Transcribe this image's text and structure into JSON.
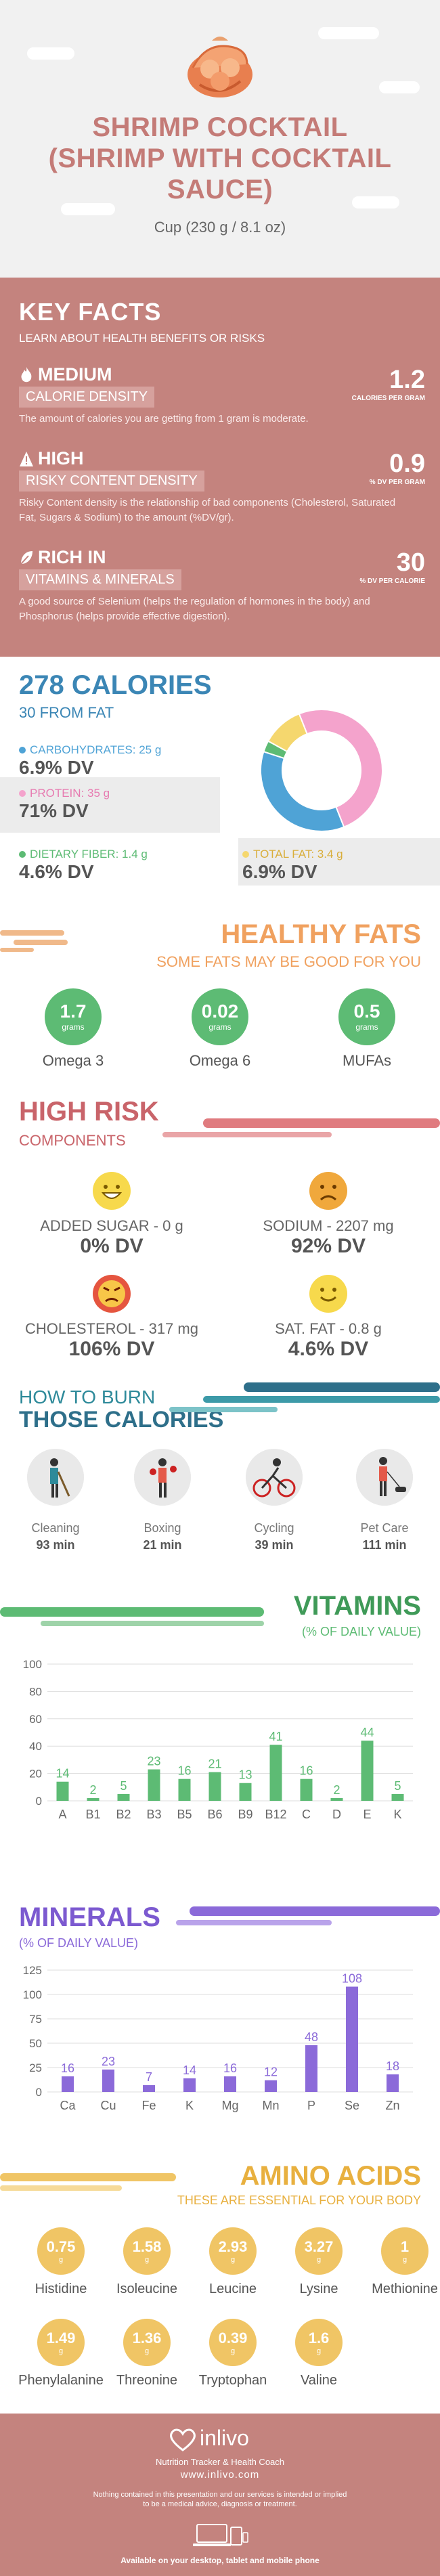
{
  "header": {
    "title_lines": [
      "SHRIMP COCKTAIL",
      "(SHRIMP WITH COCKTAIL",
      "SAUCE)"
    ],
    "serving": "Cup (230 g / 8.1 oz)"
  },
  "key_facts": {
    "title": "KEY FACTS",
    "subtitle": "LEARN ABOUT HEALTH BENEFITS OR RISKS",
    "items": [
      {
        "level": "MEDIUM",
        "label": "CALORIE DENSITY",
        "value": "1.2",
        "unit": "CALORIES PER GRAM",
        "desc": "The amount of calories you are getting from 1 gram is moderate."
      },
      {
        "level": "HIGH",
        "label": "RISKY CONTENT DENSITY",
        "value": "0.9",
        "unit": "% DV PER GRAM",
        "desc": "Risky Content density is the relationship of bad components (Cholesterol, Saturated Fat, Sugars & Sodium) to the amount (%DV/gr)."
      },
      {
        "level": "RICH  IN",
        "label": "VITAMINS & MINERALS",
        "value": "30",
        "unit": "% DV PER CALORIE",
        "desc": "A good source of Selenium (helps the regulation of hormones in the body) and Phosphorus (helps provide effective digestion)."
      }
    ]
  },
  "calories": {
    "title": "278 CALORIES",
    "subtitle": "30 FROM FAT",
    "carbs": {
      "label": "CARBOHYDRATES: 25 g",
      "dv": "6.9% DV"
    },
    "protein": {
      "label": "PROTEIN: 35 g",
      "dv": "71% DV"
    },
    "fiber": {
      "label": "DIETARY FIBER: 1.4 g",
      "dv": "4.6% DV"
    },
    "fat": {
      "label": "TOTAL FAT: 3.4 g",
      "dv": "6.9% DV"
    },
    "donut": {
      "carbs_pct": 36,
      "protein_pct": 50,
      "fat_pct": 11,
      "fiber_pct": 3
    },
    "colors": {
      "carbs": "#4fa3d6",
      "protein": "#f4a3cc",
      "fat": "#f5d76e",
      "fiber": "#5dbb74"
    }
  },
  "healthy_fats": {
    "title": "HEALTHY FATS",
    "subtitle": "SOME FATS MAY BE GOOD FOR YOU",
    "items": [
      {
        "value": "1.7",
        "unit": "grams",
        "name": "Omega 3"
      },
      {
        "value": "0.02",
        "unit": "grams",
        "name": "Omega 6"
      },
      {
        "value": "0.5",
        "unit": "grams",
        "name": "MUFAs"
      }
    ]
  },
  "high_risk": {
    "title": "HIGH RISK",
    "subtitle": "COMPONENTS",
    "items": [
      {
        "label": "ADDED SUGAR - 0 g",
        "dv": "0% DV",
        "face": "happy"
      },
      {
        "label": "SODIUM - 2207 mg",
        "dv": "92% DV",
        "face": "sad"
      },
      {
        "label": "CHOLESTEROL - 317 mg",
        "dv": "106% DV",
        "face": "angry"
      },
      {
        "label": "SAT. FAT - 0.8 g",
        "dv": "4.6% DV",
        "face": "smile"
      }
    ]
  },
  "burn": {
    "title_1": "HOW TO BURN",
    "title_2": "THOSE CALORIES",
    "items": [
      {
        "name": "Cleaning",
        "minutes": "93 min"
      },
      {
        "name": "Boxing",
        "minutes": "21 min"
      },
      {
        "name": "Cycling",
        "minutes": "39 min"
      },
      {
        "name": "Pet Care",
        "minutes": "111 min"
      }
    ]
  },
  "vitamins": {
    "title": "VITAMINS",
    "subtitle": "(% OF DAILY VALUE)",
    "chart_data": {
      "type": "bar",
      "categories": [
        "A",
        "B1",
        "B2",
        "B3",
        "B5",
        "B6",
        "B9",
        "B12",
        "C",
        "D",
        "E",
        "K"
      ],
      "values": [
        14,
        2,
        5,
        23,
        16,
        21,
        13,
        41,
        16,
        2,
        44,
        5
      ],
      "yticks": [
        0,
        20,
        40,
        60,
        80,
        100
      ],
      "ylim": [
        0,
        100
      ],
      "color": "#5dbb74"
    }
  },
  "minerals": {
    "title": "MINERALS",
    "subtitle": "(% OF DAILY VALUE)",
    "chart_data": {
      "type": "bar",
      "categories": [
        "Ca",
        "Cu",
        "Fe",
        "K",
        "Mg",
        "Mn",
        "P",
        "Se",
        "Zn"
      ],
      "values": [
        16,
        23,
        7,
        14,
        16,
        12,
        48,
        108,
        18
      ],
      "yticks": [
        0,
        25,
        50,
        75,
        100,
        125
      ],
      "ylim": [
        0,
        125
      ],
      "color": "#8b6ad9"
    }
  },
  "amino": {
    "title": "AMINO ACIDS",
    "subtitle": "THESE ARE ESSENTIAL FOR YOUR BODY",
    "items": [
      {
        "value": "0.75",
        "unit": "g",
        "name": "Histidine"
      },
      {
        "value": "1.58",
        "unit": "g",
        "name": "Isoleucine"
      },
      {
        "value": "2.93",
        "unit": "g",
        "name": "Leucine"
      },
      {
        "value": "3.27",
        "unit": "g",
        "name": "Lysine"
      },
      {
        "value": "1",
        "unit": "g",
        "name": "Methionine"
      },
      {
        "value": "1.49",
        "unit": "g",
        "name": "Phenylalanine"
      },
      {
        "value": "1.36",
        "unit": "g",
        "name": "Threonine"
      },
      {
        "value": "0.39",
        "unit": "g",
        "name": "Tryptophan"
      },
      {
        "value": "1.6",
        "unit": "g",
        "name": "Valine"
      }
    ]
  },
  "footer": {
    "brand": "inlivo",
    "tagline": "Nutrition Tracker & Health Coach",
    "url": "www.inlivo.com",
    "disclaimer_1": "Nothing contained in this presentation and our services is intended or implied",
    "disclaimer_2": "to be a medical advice, diagnosis or treatment.",
    "available": "Available on your desktop, tablet and mobile phone"
  }
}
